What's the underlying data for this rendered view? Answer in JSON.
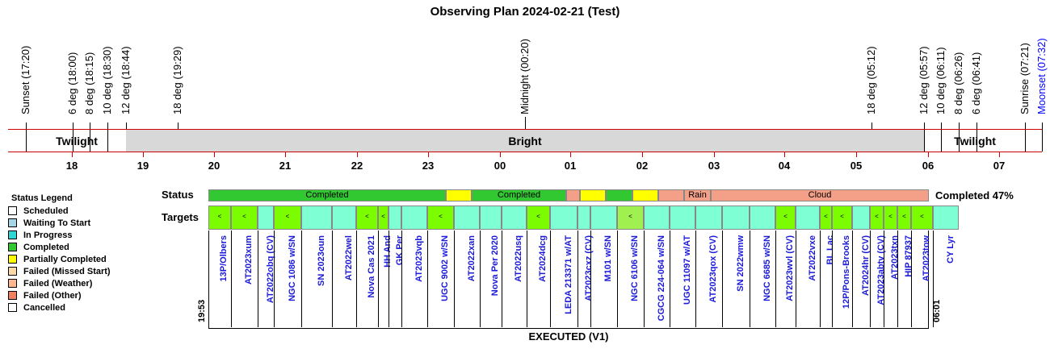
{
  "title": "Observing Plan 2024-02-21 (Test)",
  "events": [
    {
      "label": "Sunset (17:20)",
      "color": "#000"
    },
    {
      "label": "6 deg (18:00)",
      "color": "#000"
    },
    {
      "label": "8 deg (18:15)",
      "color": "#000"
    },
    {
      "label": "10 deg (18:30)",
      "color": "#000"
    },
    {
      "label": "12 deg (18:44)",
      "color": "#000"
    },
    {
      "label": "18 deg (19:29)",
      "color": "#000"
    },
    {
      "label": "Midnight (00:20)",
      "color": "#000"
    },
    {
      "label": "18 deg (05:12)",
      "color": "#000"
    },
    {
      "label": "12 deg (05:57)",
      "color": "#000"
    },
    {
      "label": "10 deg (06:11)",
      "color": "#000"
    },
    {
      "label": "8 deg (06:26)",
      "color": "#000"
    },
    {
      "label": "6 deg (06:41)",
      "color": "#000"
    },
    {
      "label": "Sunrise (07:21)",
      "color": "#000"
    },
    {
      "label": "Moonset (07:32)",
      "color": "#0000ff"
    }
  ],
  "bands": {
    "twilight_left": "Twilight",
    "bright": "Bright",
    "twilight_right": "Twilight"
  },
  "hours": [
    "18",
    "19",
    "20",
    "21",
    "22",
    "23",
    "00",
    "01",
    "02",
    "03",
    "04",
    "05",
    "06",
    "07"
  ],
  "legend": {
    "title": "Status Legend",
    "items": [
      {
        "label": "Scheduled",
        "color": "#ffffff"
      },
      {
        "label": "Waiting To Start",
        "color": "#a8d4e8"
      },
      {
        "label": "In Progress",
        "color": "#2fd6d6"
      },
      {
        "label": "Completed",
        "color": "#32c832"
      },
      {
        "label": "Partially Completed",
        "color": "#ffff00"
      },
      {
        "label": "Failed (Missed Start)",
        "color": "#ffd8a8"
      },
      {
        "label": "Failed (Weather)",
        "color": "#ffb890"
      },
      {
        "label": "Failed (Other)",
        "color": "#f08060"
      },
      {
        "label": "Cancelled",
        "color": "#ffffff"
      }
    ]
  },
  "status_row": {
    "label": "Status",
    "segments": [
      {
        "text": "Completed",
        "color": "#32c832"
      },
      {
        "text": "",
        "color": "#ffff00"
      },
      {
        "text": "Completed",
        "color": "#32c832"
      },
      {
        "text": "",
        "color": "#f4a088"
      },
      {
        "text": "",
        "color": "#ffff00"
      },
      {
        "text": "",
        "color": "#32c832"
      },
      {
        "text": "",
        "color": "#ffff00"
      },
      {
        "text": "",
        "color": "#f4a088"
      },
      {
        "text": "Rain",
        "color": "#f4a088"
      },
      {
        "text": "Cloud",
        "color": "#f4a088"
      }
    ],
    "completed_text": "Completed 47%"
  },
  "targets_label": "Targets",
  "targets": [
    {
      "name": "13P/Olbers",
      "color": "#7cfc00",
      "mark": "<"
    },
    {
      "name": "AT2023xum",
      "color": "#7cfc00",
      "mark": "<"
    },
    {
      "name": "AT2022obq (CV)",
      "color": "#7fffd4",
      "mark": ""
    },
    {
      "name": "NGC 1086 w/SN",
      "color": "#7cfc00",
      "mark": "<"
    },
    {
      "name": "SN 2023oun",
      "color": "#7fffd4",
      "mark": ""
    },
    {
      "name": "AT2022wel",
      "color": "#7fffd4",
      "mark": ""
    },
    {
      "name": "Nova Cas 2021",
      "color": "#7cfc00",
      "mark": "<"
    },
    {
      "name": "HH And",
      "color": "#7cfc00",
      "mark": "<"
    },
    {
      "name": "GK Per",
      "color": "#7fffd4",
      "mark": ""
    },
    {
      "name": "AT2023vqb",
      "color": "#7fffd4",
      "mark": ""
    },
    {
      "name": "UGC 9002 w/SN",
      "color": "#7cfc00",
      "mark": "<"
    },
    {
      "name": "AT2022xan",
      "color": "#7fffd4",
      "mark": ""
    },
    {
      "name": "Nova Per 2020",
      "color": "#7fffd4",
      "mark": ""
    },
    {
      "name": "AT2022usq",
      "color": "#7fffd4",
      "mark": ""
    },
    {
      "name": "AT2024dcg",
      "color": "#7cfc00",
      "mark": "<"
    },
    {
      "name": "LEDA 213371 w/AT",
      "color": "#7fffd4",
      "mark": ""
    },
    {
      "name": "AT2023cxz (CV)",
      "color": "#7fffd4",
      "mark": ""
    },
    {
      "name": "M101 w/SN",
      "color": "#7fffd4",
      "mark": ""
    },
    {
      "name": "NGC 6106 w/SN",
      "color": "#a0f050",
      "mark": "<"
    },
    {
      "name": "CGCG 224-064 w/SN",
      "color": "#7fffd4",
      "mark": ""
    },
    {
      "name": "UGC 11097 w/AT",
      "color": "#7fffd4",
      "mark": ""
    },
    {
      "name": "AT2023qox (CV)",
      "color": "#7fffd4",
      "mark": ""
    },
    {
      "name": "SN 2022wmw",
      "color": "#7fffd4",
      "mark": ""
    },
    {
      "name": "NGC 6685 w/SN",
      "color": "#7fffd4",
      "mark": ""
    },
    {
      "name": "AT2023wvl (CV)",
      "color": "#7cfc00",
      "mark": "<"
    },
    {
      "name": "AT2022vxe",
      "color": "#7fffd4",
      "mark": ""
    },
    {
      "name": "BL Lac",
      "color": "#7cfc00",
      "mark": "<"
    },
    {
      "name": "12P/Pons-Brooks",
      "color": "#7cfc00",
      "mark": "<"
    },
    {
      "name": "AT2024hr (CV)",
      "color": "#7fffd4",
      "mark": ""
    },
    {
      "name": "AT2023abtv (CV)",
      "color": "#7cfc00",
      "mark": "<"
    },
    {
      "name": "AT2023txn",
      "color": "#7cfc00",
      "mark": "<"
    },
    {
      "name": "HIP 87937",
      "color": "#7cfc00",
      "mark": "<"
    },
    {
      "name": "AT2023tow",
      "color": "#7cfc00",
      "mark": "<"
    },
    {
      "name": "CY Lyr",
      "color": "#7fffd4",
      "mark": ""
    }
  ],
  "start_time": "19:53",
  "end_time": "06:01",
  "footer": "EXECUTED (V1)"
}
